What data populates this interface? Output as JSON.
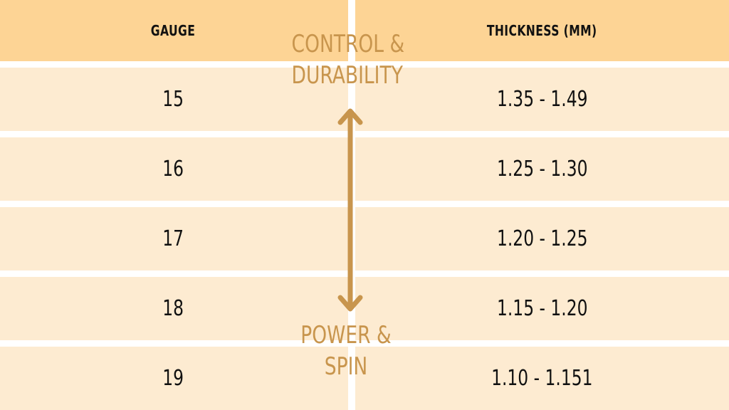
{
  "table": {
    "headers": {
      "gauge": "GAUGE",
      "thickness": "THICKNESS (MM)"
    },
    "rows": [
      {
        "gauge": "15",
        "thickness": "1.35 - 1.49"
      },
      {
        "gauge": "16",
        "thickness": "1.25 - 1.30"
      },
      {
        "gauge": "17",
        "thickness": "1.20 - 1.25"
      },
      {
        "gauge": "18",
        "thickness": "1.15 - 1.20"
      },
      {
        "gauge": "19",
        "thickness": "1.10 - 1.151"
      }
    ]
  },
  "scale": {
    "top_label_line1": "CONTROL &",
    "top_label_line2": "DURABILITY",
    "bottom_label_line1": "POWER &",
    "bottom_label_line2": "SPIN"
  },
  "colors": {
    "header_bg": "#fdd495",
    "row_bg": "#fdebd1",
    "accent": "#c8954d"
  }
}
